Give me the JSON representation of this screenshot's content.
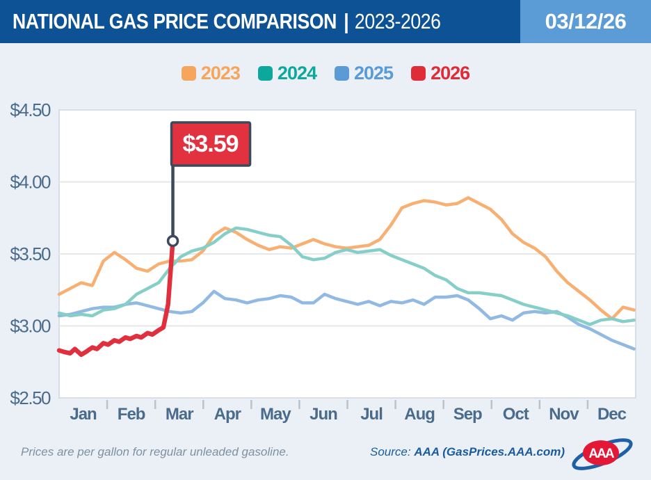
{
  "header": {
    "title": "NATIONAL GAS PRICE COMPARISON",
    "separator": "|",
    "year_range": "2023-2026",
    "date": "03/12/26"
  },
  "colors": {
    "header_bg": "#0E5296",
    "date_badge_bg": "#5C9CD6",
    "page_bg": "#EAF0F5",
    "plot_bg": "#FFFFFF",
    "plot_border": "#D8DEE4",
    "gridline": "#E4E7EB",
    "axis_label": "#4A6B8C",
    "tick_mark": "#B9C3CD",
    "flag_pole": "#3C4A59"
  },
  "chart_data": {
    "type": "line",
    "title": "National Gas Price Comparison 2023-2026",
    "y_axis": {
      "min": 2.5,
      "max": 4.5,
      "tick_labels": [
        "$4.50",
        "$4.00",
        "$3.50",
        "$3.00",
        "$2.50"
      ],
      "tick_values": [
        4.5,
        4.0,
        3.5,
        3.0,
        2.5
      ],
      "grid": true
    },
    "x_axis": {
      "months": [
        "Jan",
        "Feb",
        "Mar",
        "Apr",
        "May",
        "Jun",
        "Jul",
        "Aug",
        "Sep",
        "Oct",
        "Nov",
        "Dec"
      ],
      "days_per_year": 365
    },
    "weekly_days": [
      0,
      7,
      14,
      21,
      28,
      35,
      42,
      49,
      56,
      63,
      70,
      77,
      84,
      91,
      98,
      105,
      112,
      119,
      126,
      133,
      140,
      147,
      154,
      161,
      168,
      175,
      182,
      189,
      196,
      203,
      210,
      217,
      224,
      231,
      238,
      245,
      252,
      259,
      266,
      273,
      280,
      287,
      294,
      301,
      308,
      315,
      322,
      329,
      336,
      343,
      350,
      357,
      364
    ],
    "draw_order": [
      "2023",
      "2025",
      "2024",
      "2026"
    ],
    "series": [
      {
        "name": "2023",
        "legend_color": "#F6A55C",
        "line_color": "#F8AF72",
        "line_width": 4.5,
        "values": [
          3.22,
          3.26,
          3.3,
          3.28,
          3.45,
          3.51,
          3.46,
          3.4,
          3.38,
          3.43,
          3.45,
          3.45,
          3.46,
          3.52,
          3.63,
          3.68,
          3.65,
          3.6,
          3.56,
          3.53,
          3.55,
          3.54,
          3.57,
          3.6,
          3.57,
          3.55,
          3.54,
          3.55,
          3.56,
          3.6,
          3.7,
          3.82,
          3.85,
          3.87,
          3.86,
          3.84,
          3.85,
          3.89,
          3.85,
          3.81,
          3.74,
          3.64,
          3.58,
          3.54,
          3.48,
          3.38,
          3.3,
          3.24,
          3.18,
          3.11,
          3.05,
          3.13,
          3.11
        ]
      },
      {
        "name": "2024",
        "legend_color": "#0DA89D",
        "line_color": "#85CFC8",
        "line_width": 4.5,
        "values": [
          3.09,
          3.07,
          3.08,
          3.07,
          3.11,
          3.12,
          3.15,
          3.22,
          3.26,
          3.3,
          3.4,
          3.48,
          3.52,
          3.54,
          3.58,
          3.64,
          3.68,
          3.67,
          3.65,
          3.63,
          3.62,
          3.56,
          3.48,
          3.46,
          3.47,
          3.51,
          3.53,
          3.51,
          3.52,
          3.53,
          3.49,
          3.46,
          3.43,
          3.4,
          3.35,
          3.32,
          3.26,
          3.23,
          3.23,
          3.22,
          3.21,
          3.18,
          3.15,
          3.13,
          3.11,
          3.09,
          3.07,
          3.04,
          3.01,
          3.04,
          3.05,
          3.03,
          3.04
        ]
      },
      {
        "name": "2025",
        "legend_color": "#5B9BD5",
        "line_color": "#90B9E3",
        "line_width": 4.5,
        "values": [
          3.07,
          3.08,
          3.1,
          3.12,
          3.13,
          3.13,
          3.15,
          3.16,
          3.14,
          3.12,
          3.1,
          3.09,
          3.1,
          3.16,
          3.24,
          3.19,
          3.18,
          3.16,
          3.18,
          3.19,
          3.21,
          3.2,
          3.16,
          3.16,
          3.22,
          3.19,
          3.17,
          3.15,
          3.17,
          3.14,
          3.17,
          3.16,
          3.18,
          3.15,
          3.2,
          3.2,
          3.21,
          3.18,
          3.12,
          3.05,
          3.07,
          3.04,
          3.09,
          3.1,
          3.09,
          3.1,
          3.06,
          3.01,
          2.98,
          2.94,
          2.9,
          2.87,
          2.84
        ]
      },
      {
        "name": "2026",
        "legend_color": "#E02B38",
        "line_color": "#E0303E",
        "line_width": 6.5,
        "x_days": [
          0,
          3,
          7,
          10,
          14,
          17,
          21,
          24,
          28,
          31,
          35,
          38,
          42,
          45,
          49,
          52,
          56,
          59,
          63,
          66,
          69,
          72
        ],
        "values": [
          2.83,
          2.82,
          2.81,
          2.84,
          2.8,
          2.82,
          2.85,
          2.84,
          2.88,
          2.87,
          2.9,
          2.89,
          2.92,
          2.91,
          2.93,
          2.92,
          2.95,
          2.94,
          2.97,
          2.99,
          3.15,
          3.59
        ]
      }
    ],
    "annotation": {
      "label": "$3.59",
      "value": 3.59,
      "series": "2026",
      "flag_fill": "#E23240",
      "flag_border": "#3C4A59"
    },
    "legend_position": "top-center"
  },
  "footer": {
    "note": "Prices are per gallon for regular unleaded gasoline.",
    "source_prefix": "Source:",
    "source": "AAA (GasPrices.AAA.com)",
    "logo_text": "AAA"
  }
}
